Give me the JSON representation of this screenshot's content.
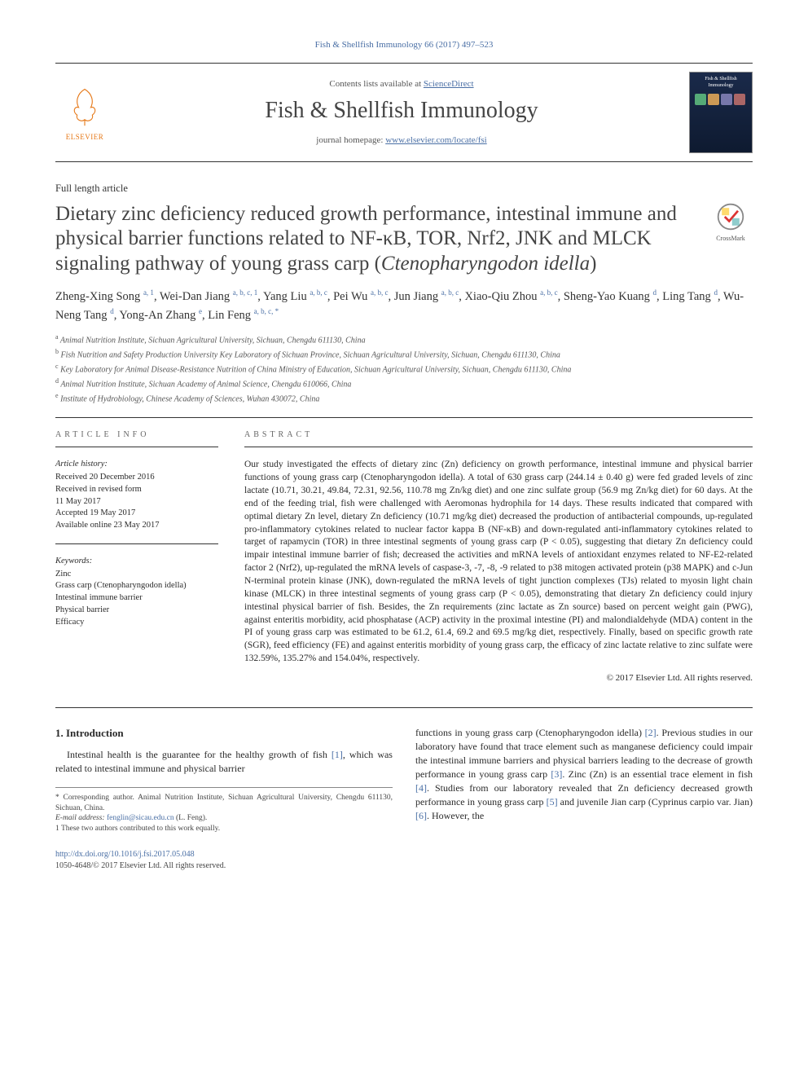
{
  "running_head": "Fish & Shellfish Immunology 66 (2017) 497–523",
  "masthead": {
    "contents_prefix": "Contents lists available at ",
    "contents_link": "ScienceDirect",
    "journal": "Fish & Shellfish Immunology",
    "homepage_prefix": "journal homepage: ",
    "homepage_link": "www.elsevier.com/locate/fsi",
    "publisher": "ELSEVIER"
  },
  "article_type": "Full length article",
  "title_pre": "Dietary zinc deficiency reduced growth performance, intestinal immune and physical barrier functions related to NF-κB, TOR, Nrf2, JNK and MLCK signaling pathway of young grass carp (",
  "title_em": "Ctenopharyngodon idella",
  "title_post": ")",
  "crossmark_label": "CrossMark",
  "authors_html": "Zheng-Xing Song <sup>a, 1</sup>, Wei-Dan Jiang <sup>a, b, c, 1</sup>, Yang Liu <sup>a, b, c</sup>, Pei Wu <sup>a, b, c</sup>, Jun Jiang <sup>a, b, c</sup>, Xiao-Qiu Zhou <sup>a, b, c</sup>, Sheng-Yao Kuang <sup>d</sup>, Ling Tang <sup>d</sup>, Wu-Neng Tang <sup>d</sup>, Yong-An Zhang <sup>e</sup>, Lin Feng <sup>a, b, c, *</sup>",
  "affiliations": [
    "a Animal Nutrition Institute, Sichuan Agricultural University, Sichuan, Chengdu 611130, China",
    "b Fish Nutrition and Safety Production University Key Laboratory of Sichuan Province, Sichuan Agricultural University, Sichuan, Chengdu 611130, China",
    "c Key Laboratory for Animal Disease-Resistance Nutrition of China Ministry of Education, Sichuan Agricultural University, Sichuan, Chengdu 611130, China",
    "d Animal Nutrition Institute, Sichuan Academy of Animal Science, Chengdu 610066, China",
    "e Institute of Hydrobiology, Chinese Academy of Sciences, Wuhan 430072, China"
  ],
  "info": {
    "label": "ARTICLE INFO",
    "history_label": "Article history:",
    "history": "Received 20 December 2016\nReceived in revised form\n11 May 2017\nAccepted 19 May 2017\nAvailable online 23 May 2017",
    "keywords_label": "Keywords:",
    "keywords": "Zinc\nGrass carp (Ctenopharyngodon idella)\nIntestinal immune barrier\nPhysical barrier\nEfficacy"
  },
  "abstract": {
    "label": "ABSTRACT",
    "text": "Our study investigated the effects of dietary zinc (Zn) deficiency on growth performance, intestinal immune and physical barrier functions of young grass carp (Ctenopharyngodon idella). A total of 630 grass carp (244.14 ± 0.40 g) were fed graded levels of zinc lactate (10.71, 30.21, 49.84, 72.31, 92.56, 110.78 mg Zn/kg diet) and one zinc sulfate group (56.9 mg Zn/kg diet) for 60 days. At the end of the feeding trial, fish were challenged with Aeromonas hydrophila for 14 days. These results indicated that compared with optimal dietary Zn level, dietary Zn deficiency (10.71 mg/kg diet) decreased the production of antibacterial compounds, up-regulated pro-inflammatory cytokines related to nuclear factor kappa B (NF-κB) and down-regulated anti-inflammatory cytokines related to target of rapamycin (TOR) in three intestinal segments of young grass carp (P < 0.05), suggesting that dietary Zn deficiency could impair intestinal immune barrier of fish; decreased the activities and mRNA levels of antioxidant enzymes related to NF-E2-related factor 2 (Nrf2), up-regulated the mRNA levels of caspase-3, -7, -8, -9 related to p38 mitogen activated protein (p38 MAPK) and c-Jun N-terminal protein kinase (JNK), down-regulated the mRNA levels of tight junction complexes (TJs) related to myosin light chain kinase (MLCK) in three intestinal segments of young grass carp (P < 0.05), demonstrating that dietary Zn deficiency could injury intestinal physical barrier of fish. Besides, the Zn requirements (zinc lactate as Zn source) based on percent weight gain (PWG), against enteritis morbidity, acid phosphatase (ACP) activity in the proximal intestine (PI) and malondialdehyde (MDA) content in the PI of young grass carp was estimated to be 61.2, 61.4, 69.2 and 69.5 mg/kg diet, respectively. Finally, based on specific growth rate (SGR), feed efficiency (FE) and against enteritis morbidity of young grass carp, the efficacy of zinc lactate relative to zinc sulfate were 132.59%, 135.27% and 154.04%, respectively.",
    "copyright": "© 2017 Elsevier Ltd. All rights reserved."
  },
  "body": {
    "section_num": "1.",
    "section_title": "Introduction",
    "p1_pre": "Intestinal health is the guarantee for the healthy growth of fish ",
    "p1_ref1": "[1]",
    "p1_post": ", which was related to intestinal immune and physical barrier",
    "p2_pre": "functions in young grass carp (Ctenopharyngodon idella) ",
    "p2_ref2": "[2]",
    "p2_mid1": ". Previous studies in our laboratory have found that trace element such as manganese deficiency could impair the intestinal immune barriers and physical barriers leading to the decrease of growth performance in young grass carp ",
    "p2_ref3": "[3]",
    "p2_mid2": ". Zinc (Zn) is an essential trace element in fish ",
    "p2_ref4": "[4]",
    "p2_mid3": ". Studies from our laboratory revealed that Zn deficiency decreased growth performance in young grass carp ",
    "p2_ref5": "[5]",
    "p2_mid4": " and juvenile Jian carp (Cyprinus carpio var. Jian) ",
    "p2_ref6": "[6]",
    "p2_post": ". However, the"
  },
  "footnotes": {
    "corr": "* Corresponding author. Animal Nutrition Institute, Sichuan Agricultural University, Chengdu 611130, Sichuan, China.",
    "email_label": "E-mail address: ",
    "email": "fenglin@sicau.edu.cn",
    "email_who": " (L. Feng).",
    "equal": "1 These two authors contributed to this work equally."
  },
  "footer": {
    "doi": "http://dx.doi.org/10.1016/j.fsi.2017.05.048",
    "issn_line": "1050-4648/© 2017 Elsevier Ltd. All rights reserved."
  },
  "colors": {
    "link": "#4a6fa5",
    "text": "#2a2a2a",
    "orange": "#e67817"
  }
}
